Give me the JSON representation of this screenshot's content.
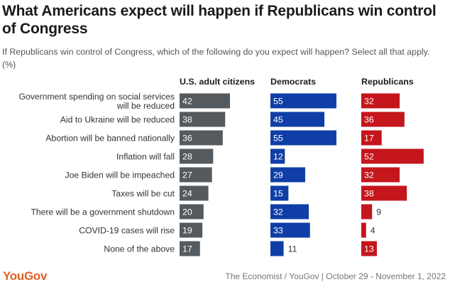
{
  "title": "What Americans expect will happen if Republicans win control of Congress",
  "subtitle": "If Republicans win control of Congress, which of the following do you expect will happen? Select all that apply. (%)",
  "brand": "YouGov",
  "source": "The Economist / YouGov | October 29 - November 1, 2022",
  "colors": {
    "us_adults": "#555a5e",
    "democrats": "#0f3fa6",
    "republicans": "#c4161c",
    "label_inside": "#ffffff",
    "label_outside": "#333333"
  },
  "chart_data": {
    "type": "bar",
    "orientation": "horizontal",
    "title": "What Americans expect will happen if Republicans win control of Congress",
    "categories": [
      "Government spending on social services will be reduced",
      "Aid to Ukraine will be reduced",
      "Abortion will be banned nationally",
      "Inflation will fall",
      "Joe Biden will be impeached",
      "Taxes will be cut",
      "There will be a government shutdown",
      "COVID-19 cases will rise",
      "None of the above"
    ],
    "category_lines": [
      [
        "Government spending on social services",
        "will be reduced"
      ],
      [
        "Aid to Ukraine will be reduced"
      ],
      [
        "Abortion will be banned nationally"
      ],
      [
        "Inflation will fall"
      ],
      [
        "Joe Biden will be impeached"
      ],
      [
        "Taxes will be cut"
      ],
      [
        "There will be a government shutdown"
      ],
      [
        "COVID-19 cases will rise"
      ],
      [
        "None of the above"
      ]
    ],
    "series": [
      {
        "name": "U.S. adult citizens",
        "key": "us_adults",
        "values": [
          42,
          38,
          36,
          28,
          27,
          24,
          20,
          19,
          17
        ]
      },
      {
        "name": "Democrats",
        "key": "democrats",
        "values": [
          55,
          45,
          55,
          12,
          29,
          15,
          32,
          33,
          11
        ]
      },
      {
        "name": "Republicans",
        "key": "republicans",
        "values": [
          32,
          36,
          17,
          52,
          32,
          38,
          9,
          4,
          13
        ]
      }
    ],
    "unit": "%",
    "xlim": [
      0,
      100
    ]
  }
}
